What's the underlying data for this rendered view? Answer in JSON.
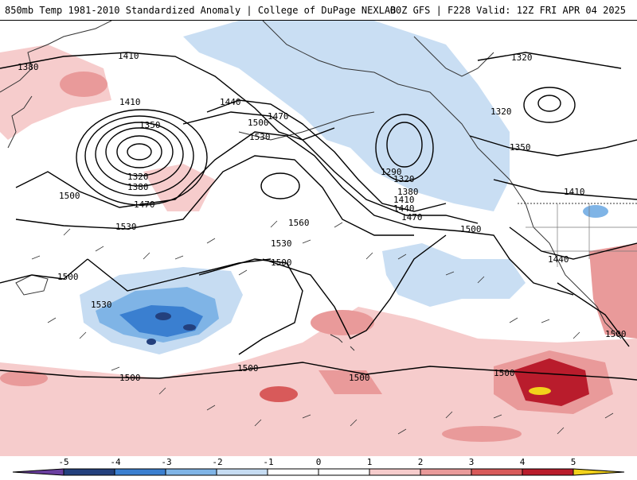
{
  "header": {
    "title_left": "850mb Temp 1981-2010 Standardized Anomaly | College of DuPage NEXLAB",
    "title_right": "00Z GFS | F228 Valid: 12Z FRI APR 04 2025"
  },
  "map": {
    "variable": "850mb temperature standardized anomaly",
    "contour_labels": [
      {
        "id": "c1380a",
        "text": "1380"
      },
      {
        "id": "c1410a",
        "text": "1410"
      },
      {
        "id": "c1410b",
        "text": "1410"
      },
      {
        "id": "c1350a",
        "text": "1350"
      },
      {
        "id": "c1320a",
        "text": "1320"
      },
      {
        "id": "c1380b",
        "text": "1380"
      },
      {
        "id": "c1470a",
        "text": "1470"
      },
      {
        "id": "c1500a",
        "text": "1500"
      },
      {
        "id": "c1530a",
        "text": "1530"
      },
      {
        "id": "c1440a",
        "text": "1440"
      },
      {
        "id": "c1470b",
        "text": "1470"
      },
      {
        "id": "c1500b",
        "text": "1500"
      },
      {
        "id": "c1530b",
        "text": "1530"
      },
      {
        "id": "c1560a",
        "text": "1560"
      },
      {
        "id": "c1530c",
        "text": "1530"
      },
      {
        "id": "c1500c",
        "text": "1500"
      },
      {
        "id": "c1290a",
        "text": "1290"
      },
      {
        "id": "c1320b",
        "text": "1320"
      },
      {
        "id": "c1380c",
        "text": "1380"
      },
      {
        "id": "c1410c",
        "text": "1410"
      },
      {
        "id": "c1440b",
        "text": "1440"
      },
      {
        "id": "c1470c",
        "text": "1470"
      },
      {
        "id": "c1500d",
        "text": "1500"
      },
      {
        "id": "c1320c",
        "text": "1320"
      },
      {
        "id": "c1320d",
        "text": "1320"
      },
      {
        "id": "c1350b",
        "text": "1350"
      },
      {
        "id": "c1410d",
        "text": "1410"
      },
      {
        "id": "c1440c",
        "text": "1440"
      },
      {
        "id": "c1500e",
        "text": "1500"
      },
      {
        "id": "c1530d",
        "text": "1530"
      },
      {
        "id": "c1500f",
        "text": "1500"
      },
      {
        "id": "c1500g",
        "text": "1500"
      },
      {
        "id": "c1500h",
        "text": "1500"
      },
      {
        "id": "c1500i",
        "text": "1500"
      },
      {
        "id": "c1500j",
        "text": "1500"
      }
    ]
  },
  "colorbar": {
    "ticks": [
      "-5",
      "-4",
      "-3",
      "-2",
      "-1",
      "0",
      "1",
      "2",
      "3",
      "4",
      "5"
    ],
    "colors": {
      "neg5": "#6b3fa0",
      "neg4": "#23407d",
      "neg3": "#3a7fd0",
      "neg2": "#7fb4e6",
      "neg1": "#c6dcf2",
      "zero": "#ffffff",
      "pos1": "#f6cccc",
      "pos2": "#e99a9a",
      "pos3": "#d85a5a",
      "pos4": "#b91c2c",
      "pos5": "#f2d21b"
    }
  }
}
